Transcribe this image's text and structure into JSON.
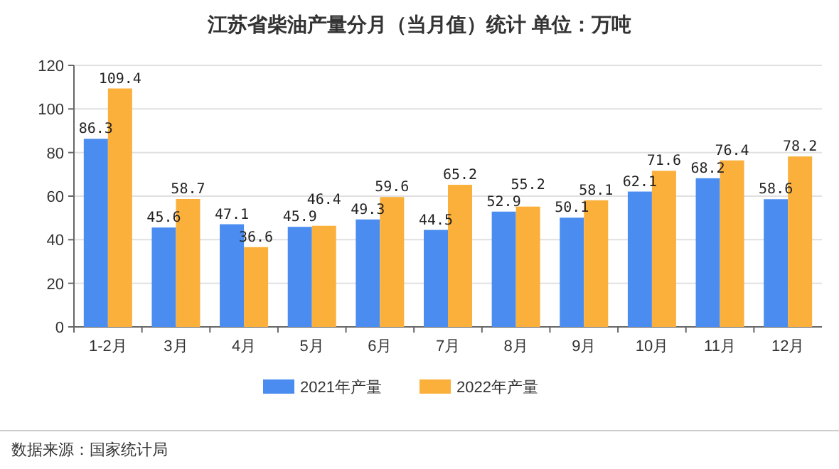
{
  "chart_data": {
    "type": "bar",
    "title": "江苏省柴油产量分月（当月值）统计 单位：万吨",
    "categories": [
      "1-2月",
      "3月",
      "4月",
      "5月",
      "6月",
      "7月",
      "8月",
      "9月",
      "10月",
      "11月",
      "12月"
    ],
    "series": [
      {
        "name": "2021年产量",
        "color": "#4a8cf0",
        "values": [
          86.3,
          45.6,
          47.1,
          45.9,
          49.3,
          44.5,
          52.9,
          50.1,
          62.1,
          68.2,
          58.6
        ]
      },
      {
        "name": "2022年产量",
        "color": "#fbb03b",
        "values": [
          109.4,
          58.7,
          36.6,
          46.4,
          59.6,
          65.2,
          55.2,
          58.1,
          71.6,
          76.4,
          78.2
        ]
      }
    ],
    "ylim": [
      0,
      120
    ],
    "yticks": [
      0,
      20,
      40,
      60,
      80,
      100,
      120
    ],
    "grid": "y",
    "legend": "bottom",
    "data_labels": true,
    "annotations": [
      "数据来源：国家统计局"
    ]
  }
}
